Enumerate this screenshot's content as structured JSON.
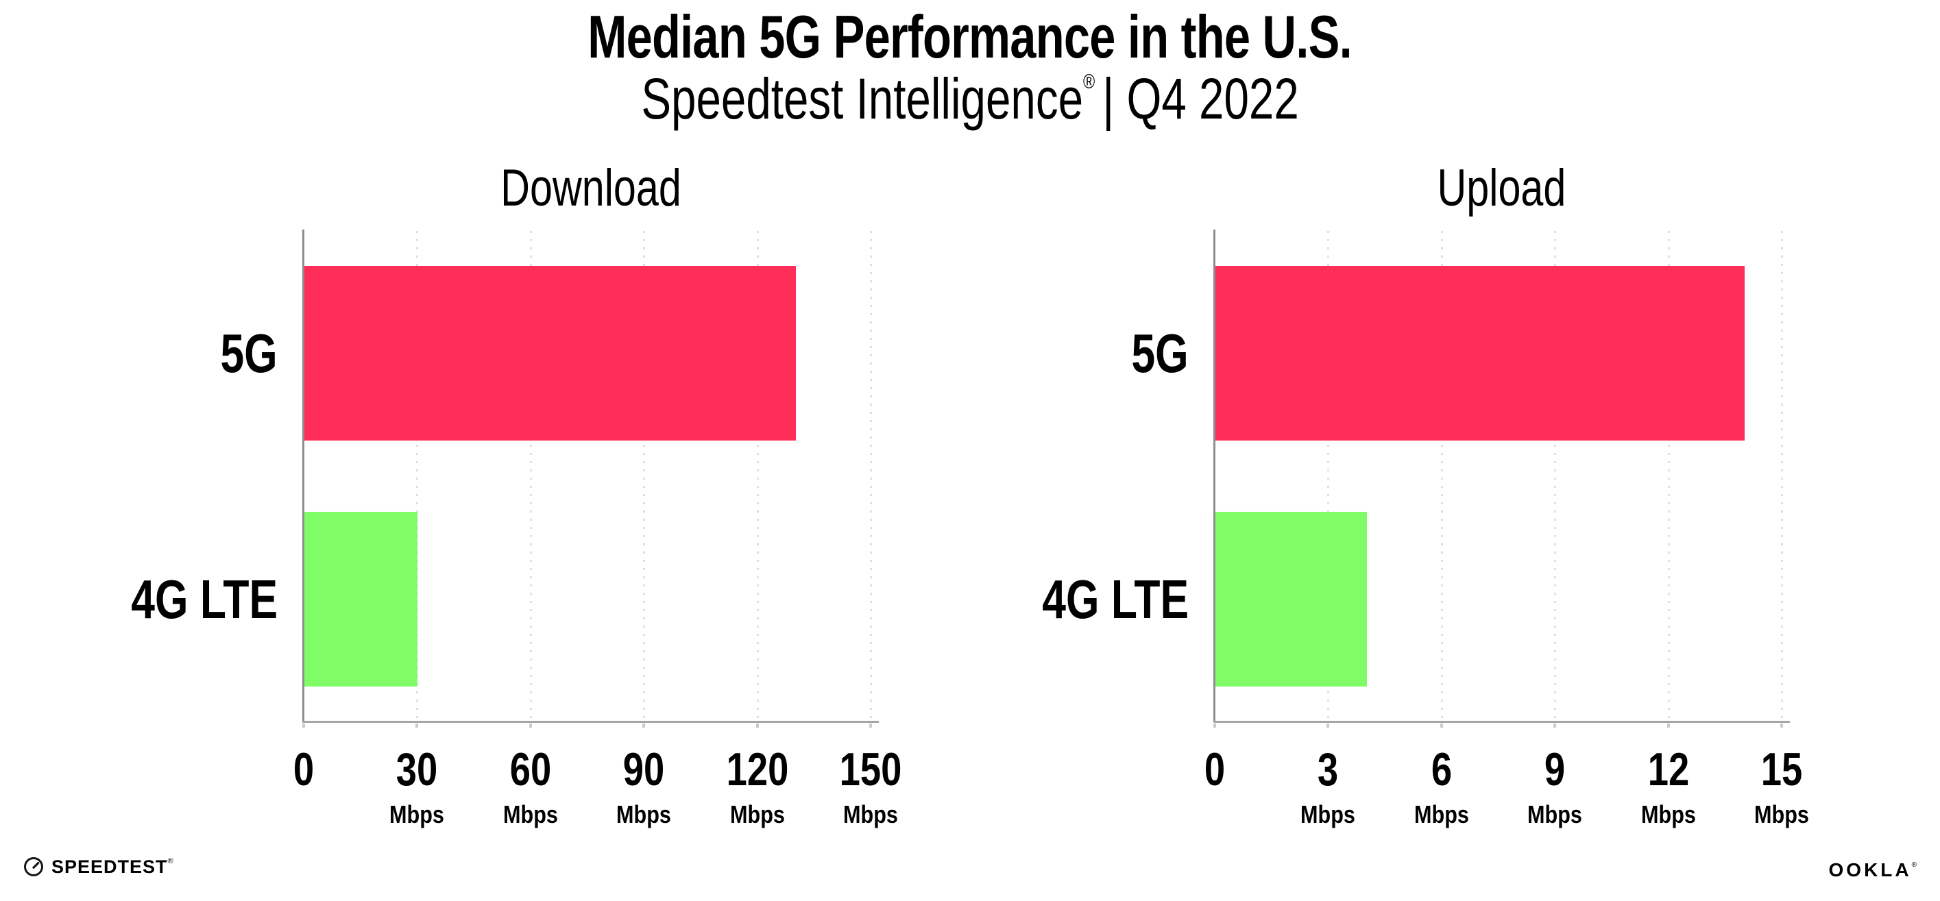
{
  "header": {
    "title": "Median 5G Performance in the U.S.",
    "subtitle_brand": "Speedtest Intelligence",
    "subtitle_reg": "®",
    "subtitle_period": "| Q4 2022"
  },
  "colors": {
    "bar_5g": "#FF2E58",
    "bar_4g_lte": "#80FC66",
    "gridline": "#DEDEE9",
    "axis_line": "#9A9A9A",
    "text": "#000000"
  },
  "chart_data": [
    {
      "type": "bar",
      "orientation": "horizontal",
      "title": "Download",
      "categories": [
        "5G",
        "4G LTE"
      ],
      "values": [
        130,
        30
      ],
      "unit": "Mbps",
      "xlim": [
        0,
        150
      ],
      "ticks": [
        0,
        30,
        60,
        90,
        120,
        150
      ],
      "tick_unit_label": "Mbps",
      "grid": "dotted-vertical",
      "legend": "none",
      "colors": [
        "#FF2E58",
        "#80FC66"
      ]
    },
    {
      "type": "bar",
      "orientation": "horizontal",
      "title": "Upload",
      "categories": [
        "5G",
        "4G LTE"
      ],
      "values": [
        14,
        4
      ],
      "unit": "Mbps",
      "xlim": [
        0,
        15
      ],
      "ticks": [
        0,
        3,
        6,
        9,
        12,
        15
      ],
      "tick_unit_label": "Mbps",
      "grid": "dotted-vertical",
      "legend": "none",
      "colors": [
        "#FF2E58",
        "#80FC66"
      ]
    }
  ],
  "footer": {
    "speedtest_label": "SPEEDTEST",
    "speedtest_reg": "®",
    "ookla_label": "OOKLA",
    "ookla_reg": "®"
  }
}
